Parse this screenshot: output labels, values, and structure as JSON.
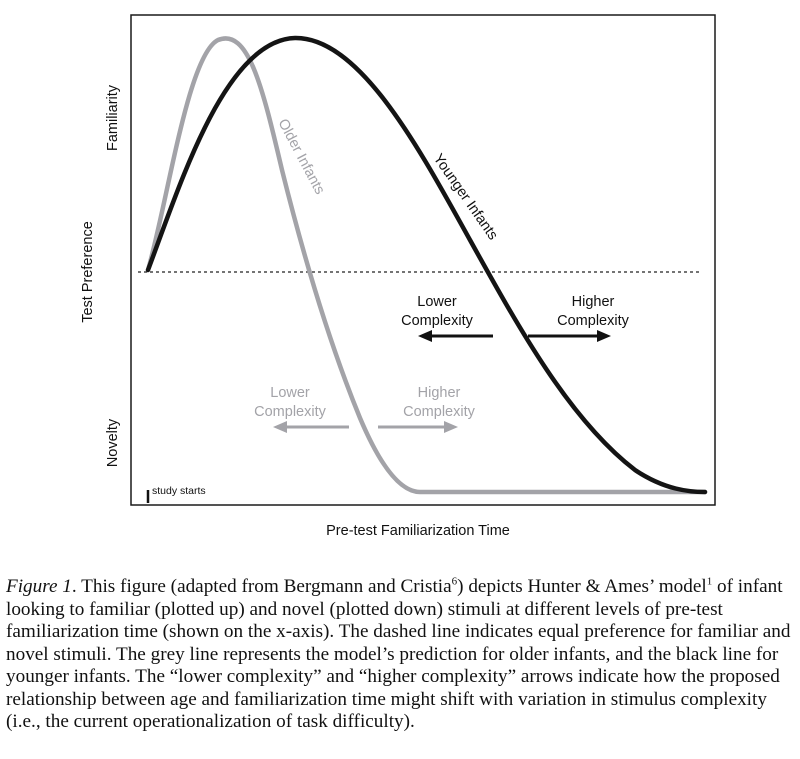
{
  "diagram": {
    "xlabel": "Pre-test Familiarization Time",
    "ylabel": "Test Preference",
    "y_top_label": "Familiarity",
    "y_bottom_label": "Novelty",
    "start_marker_label": "study starts",
    "older_label": "Older Infants",
    "younger_label": "Younger Infants",
    "black_arrows": {
      "left_line1": "Lower",
      "left_line2": "Complexity",
      "right_line1": "Higher",
      "right_line2": "Complexity"
    },
    "grey_arrows": {
      "left_line1": "Lower",
      "left_line2": "Complexity",
      "right_line1": "Higher",
      "right_line2": "Complexity"
    },
    "colors": {
      "older": "#a3a3a8",
      "younger": "#141414",
      "dashed": "#222222"
    }
  },
  "caption": {
    "lead": "Figure 1",
    "t1": ". This figure (adapted from Bergmann and Cristia",
    "sup1": "6",
    "t2": ") depicts Hunter & Ames’ model",
    "sup2": "1",
    "t3": " of infant looking to familiar (plotted up) and novel (plotted down) stimuli at different levels of pre-test familiarization time (shown on the x-axis). The dashed line indicates equal preference for familiar and novel stimuli. The grey line represents the model’s prediction for older infants, and the black line for younger infants. The “lower complexity” and “higher complexity” arrows indicate how the proposed relationship between age and familiarization time might shift with variation in stimulus complexity (i.e., the current operationalization of task difficulty)."
  }
}
